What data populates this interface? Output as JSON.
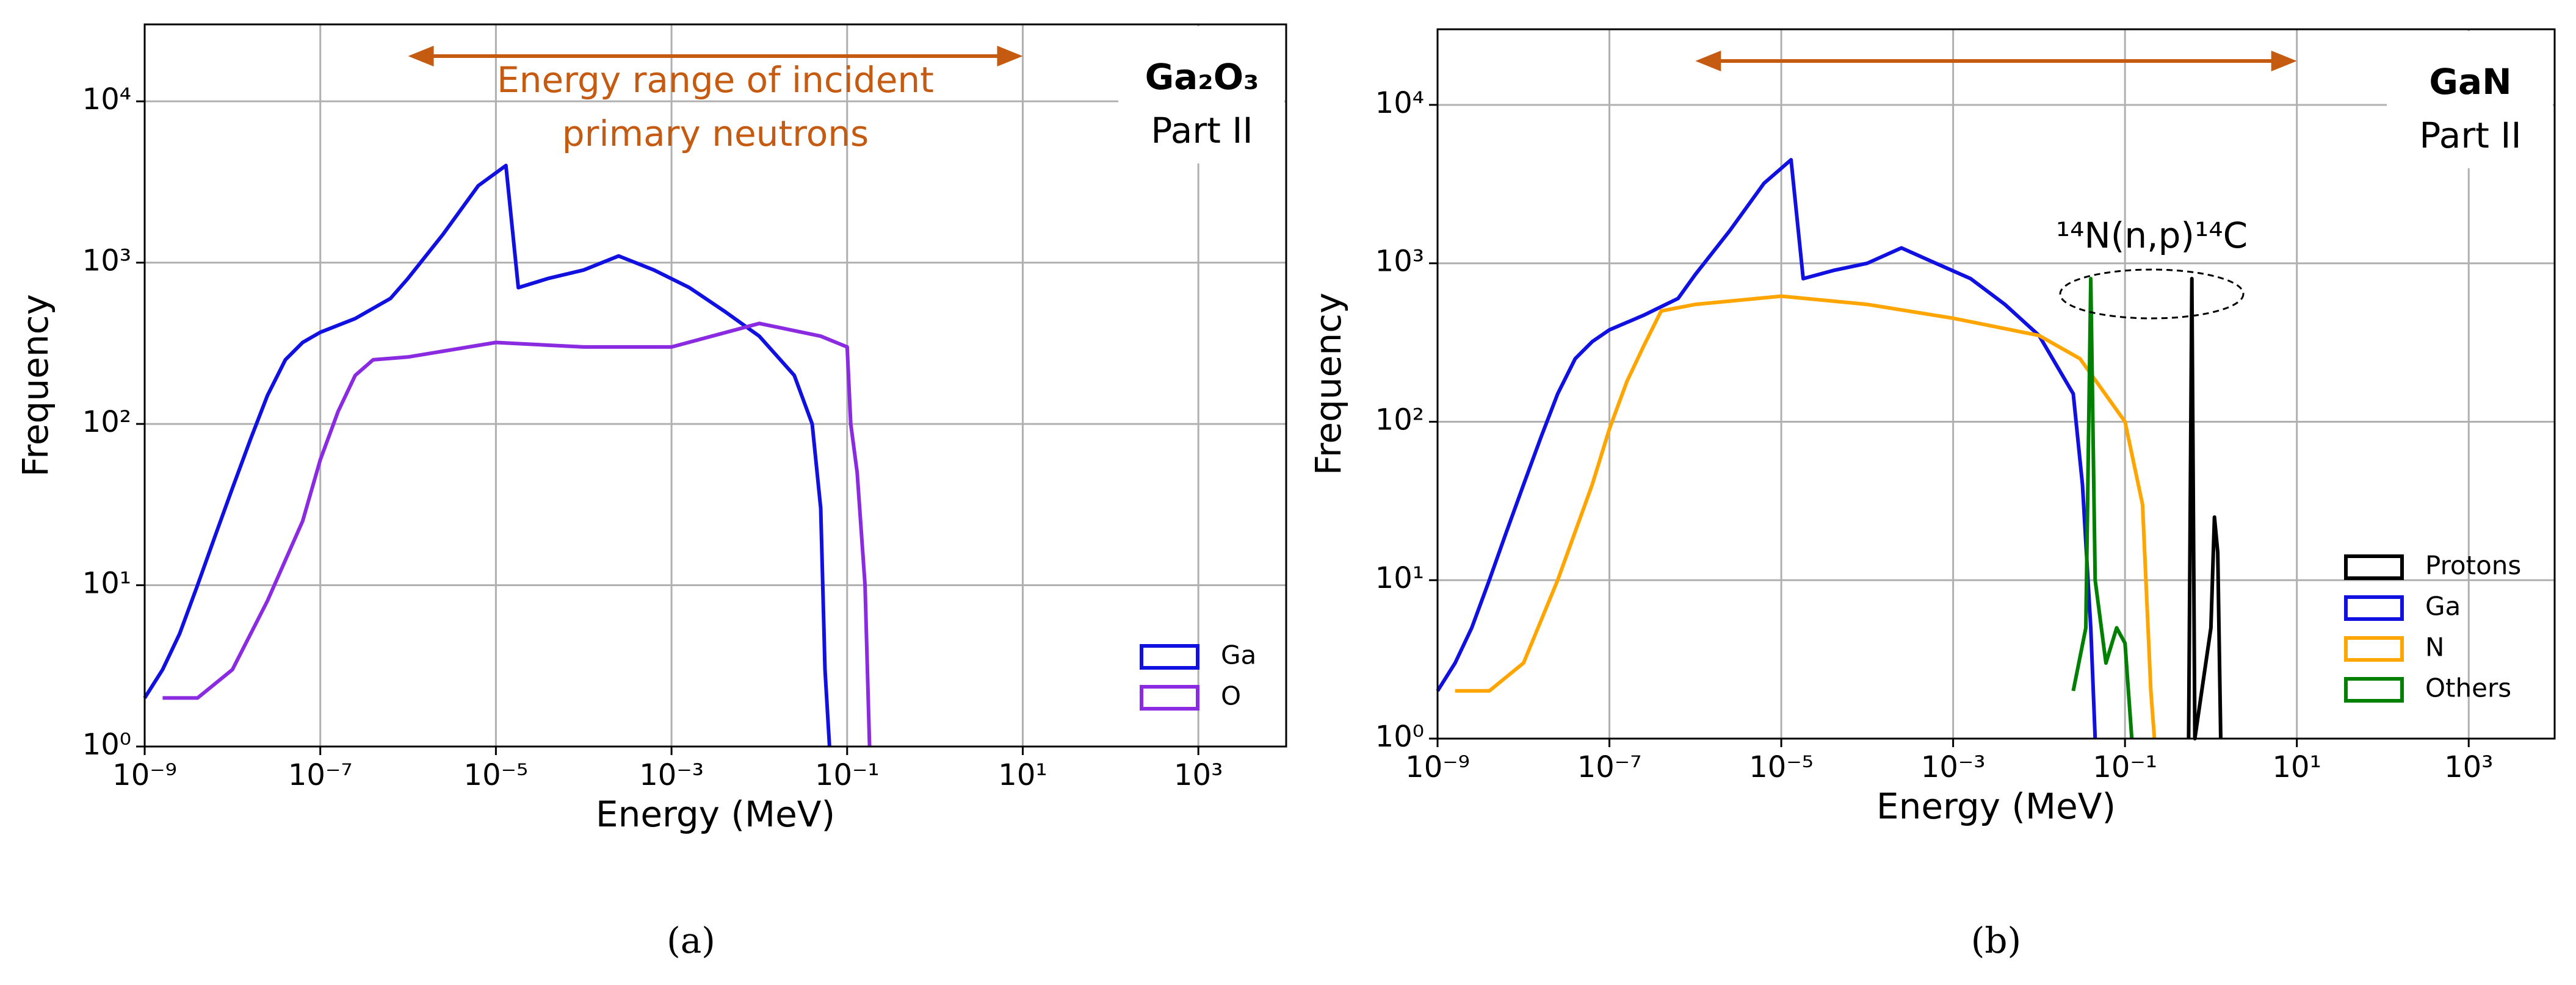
{
  "chart_data": [
    {
      "type": "line",
      "log_x": true,
      "log_y": true,
      "grid": true,
      "legend": "lower right",
      "xlabel": "Energy (MeV)",
      "ylabel": "Frequency",
      "label_title": "Ga₂O₃",
      "label_sub": "Part II",
      "annotation": [
        "Energy range of incident",
        "primary neutrons"
      ],
      "arrow_range": [
        1e-06,
        10
      ],
      "arrow_color": "#c55a11",
      "caption": "(a)",
      "xlim": [
        1e-09,
        10000.0
      ],
      "ylim": [
        1,
        30000
      ],
      "xticks": [
        {
          "value": 1e-09,
          "label": "10⁻⁹"
        },
        {
          "value": 1e-07,
          "label": "10⁻⁷"
        },
        {
          "value": 1e-05,
          "label": "10⁻⁵"
        },
        {
          "value": 0.001,
          "label": "10⁻³"
        },
        {
          "value": 0.1,
          "label": "10⁻¹"
        },
        {
          "value": 10,
          "label": "10¹"
        },
        {
          "value": 1000,
          "label": "10³"
        }
      ],
      "yticks": [
        {
          "value": 1,
          "label": "10⁰"
        },
        {
          "value": 10,
          "label": "10¹"
        },
        {
          "value": 100,
          "label": "10²"
        },
        {
          "value": 1000,
          "label": "10³"
        },
        {
          "value": 10000,
          "label": "10⁴"
        }
      ],
      "series": [
        {
          "name": "Ga",
          "color": "#1010e0",
          "x": [
            1e-09,
            1.6e-09,
            2.5e-09,
            4e-09,
            6.3e-09,
            1e-08,
            1.6e-08,
            2.5e-08,
            4e-08,
            6.3e-08,
            1e-07,
            2.5e-07,
            6.3e-07,
            1e-06,
            2.5e-06,
            6.3e-06,
            1.3e-05,
            1.8e-05,
            4e-05,
            0.0001,
            0.00025,
            0.00063,
            0.0016,
            0.004,
            0.01,
            0.025,
            0.04,
            0.05,
            0.056,
            0.063
          ],
          "values": [
            2,
            3,
            5,
            10,
            20,
            40,
            80,
            150,
            250,
            320,
            370,
            450,
            600,
            800,
            1500,
            3000,
            4000,
            700,
            800,
            900,
            1100,
            900,
            700,
            500,
            350,
            200,
            100,
            30,
            3,
            1
          ]
        },
        {
          "name": "O",
          "color": "#8a2be2",
          "x": [
            1.6e-09,
            4e-09,
            1e-08,
            2.5e-08,
            6.3e-08,
            1e-07,
            1.6e-07,
            2.5e-07,
            4e-07,
            1e-06,
            1e-05,
            0.0001,
            0.001,
            0.01,
            0.05,
            0.1,
            0.11,
            0.13,
            0.16,
            0.18
          ],
          "values": [
            2,
            2,
            3,
            8,
            25,
            60,
            120,
            200,
            250,
            260,
            320,
            300,
            300,
            420,
            350,
            300,
            100,
            50,
            10,
            1
          ]
        }
      ]
    },
    {
      "type": "line",
      "log_x": true,
      "log_y": true,
      "grid": true,
      "legend": "lower right",
      "xlabel": "Energy (MeV)",
      "ylabel": "Frequency",
      "label_title": "GaN",
      "label_sub": "Part II",
      "annotation": [
        "¹⁴N(n,p)¹⁴C"
      ],
      "arrow_range": [
        1e-06,
        10
      ],
      "arrow_color": "#c55a11",
      "caption": "(b)",
      "xlim": [
        1e-09,
        10000.0
      ],
      "ylim": [
        1,
        30000
      ],
      "xticks": [
        {
          "value": 1e-09,
          "label": "10⁻⁹"
        },
        {
          "value": 1e-07,
          "label": "10⁻⁷"
        },
        {
          "value": 1e-05,
          "label": "10⁻⁵"
        },
        {
          "value": 0.001,
          "label": "10⁻³"
        },
        {
          "value": 0.1,
          "label": "10⁻¹"
        },
        {
          "value": 10,
          "label": "10¹"
        },
        {
          "value": 1000,
          "label": "10³"
        }
      ],
      "yticks": [
        {
          "value": 1,
          "label": "10⁰"
        },
        {
          "value": 10,
          "label": "10¹"
        },
        {
          "value": 100,
          "label": "10²"
        },
        {
          "value": 1000,
          "label": "10³"
        },
        {
          "value": 10000,
          "label": "10⁴"
        }
      ],
      "series": [
        {
          "name": "Protons",
          "color": "#000000",
          "x": [
            0.55,
            0.6,
            0.65,
            1.0,
            1.1,
            1.2,
            1.3
          ],
          "values": [
            1,
            800,
            1,
            5,
            25,
            15,
            1
          ]
        },
        {
          "name": "Ga",
          "color": "#1010e0",
          "x": [
            1e-09,
            1.6e-09,
            2.5e-09,
            4e-09,
            6.3e-09,
            1e-08,
            1.6e-08,
            2.5e-08,
            4e-08,
            6.3e-08,
            1e-07,
            2.5e-07,
            6.3e-07,
            1e-06,
            2.5e-06,
            6.3e-06,
            1.3e-05,
            1.8e-05,
            4e-05,
            0.0001,
            0.00025,
            0.00063,
            0.0016,
            0.004,
            0.01,
            0.025,
            0.032,
            0.04,
            0.045
          ],
          "values": [
            2,
            3,
            5,
            10,
            20,
            40,
            80,
            150,
            250,
            320,
            380,
            470,
            600,
            850,
            1600,
            3200,
            4500,
            800,
            900,
            1000,
            1250,
            1000,
            800,
            550,
            350,
            150,
            40,
            5,
            1
          ]
        },
        {
          "name": "N",
          "color": "#ffa500",
          "x": [
            1.6e-09,
            4e-09,
            1e-08,
            2.5e-08,
            6.3e-08,
            1e-07,
            1.6e-07,
            2.5e-07,
            4e-07,
            1e-06,
            1e-05,
            0.0001,
            0.001,
            0.01,
            0.03,
            0.1,
            0.16,
            0.2,
            0.22
          ],
          "values": [
            2,
            2,
            3,
            10,
            40,
            90,
            180,
            300,
            500,
            550,
            620,
            550,
            450,
            350,
            250,
            100,
            30,
            2,
            1
          ]
        },
        {
          "name": "Others",
          "color": "#008000",
          "x": [
            0.025,
            0.035,
            0.04,
            0.045,
            0.06,
            0.08,
            0.1,
            0.12
          ],
          "values": [
            2,
            5,
            800,
            10,
            3,
            5,
            4,
            1
          ]
        }
      ]
    }
  ]
}
